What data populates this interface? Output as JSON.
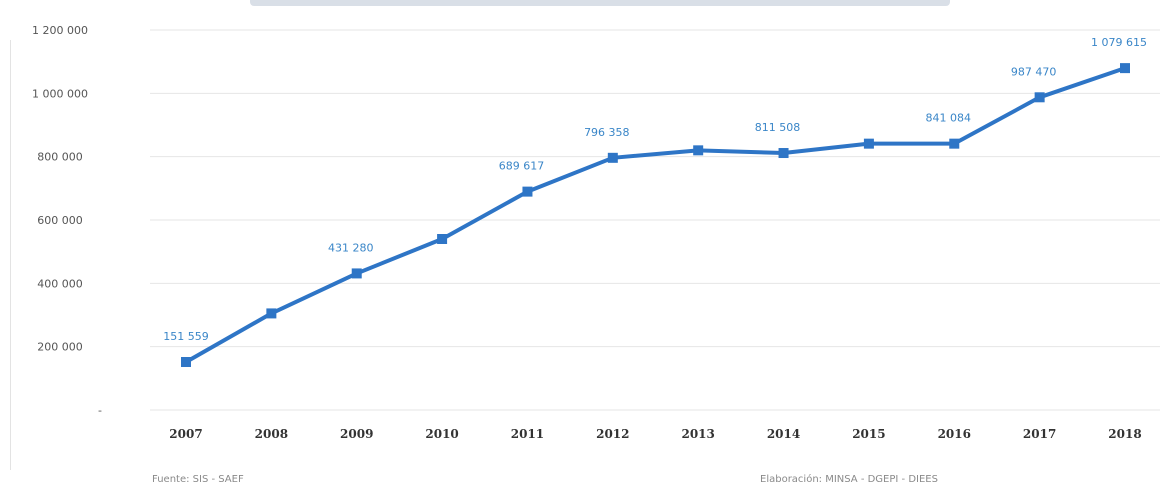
{
  "chart_data": {
    "type": "line",
    "title": "",
    "xlabel": "",
    "ylabel": "",
    "categories": [
      "2007",
      "2008",
      "2009",
      "2010",
      "2011",
      "2012",
      "2013",
      "2014",
      "2015",
      "2016",
      "2017",
      "2018"
    ],
    "series": [
      {
        "values": [
          151559,
          305000,
          431280,
          540000,
          689617,
          796358,
          820000,
          811508,
          841084,
          841084,
          987470,
          1079615
        ]
      }
    ],
    "data_labels": [
      {
        "index": 0,
        "text": "151 559"
      },
      {
        "index": 2,
        "text": "431 280"
      },
      {
        "index": 4,
        "text": "689 617"
      },
      {
        "index": 5,
        "text": "796 358"
      },
      {
        "index": 7,
        "text": "811 508"
      },
      {
        "index": 9,
        "text": "841 084"
      },
      {
        "index": 10,
        "text": "987 470"
      },
      {
        "index": 11,
        "text": "1 079 615"
      }
    ],
    "y_ticks": [
      {
        "value": 0,
        "label": "-"
      },
      {
        "value": 200000,
        "label": "200 000"
      },
      {
        "value": 400000,
        "label": "400 000"
      },
      {
        "value": 600000,
        "label": "600 000"
      },
      {
        "value": 800000,
        "label": "800 000"
      },
      {
        "value": 1000000,
        "label": "1 000 000"
      },
      {
        "value": 1200000,
        "label": "1 200 000"
      }
    ],
    "ylim": [
      0,
      1200000
    ],
    "grid": true,
    "line_color": "#2e75c6",
    "label_color": "#3a86c8"
  },
  "footer": {
    "source_left": "Fuente: SIS - SAEF",
    "source_right": "Elaboración: MINSA - DGEPI - DIEES"
  }
}
